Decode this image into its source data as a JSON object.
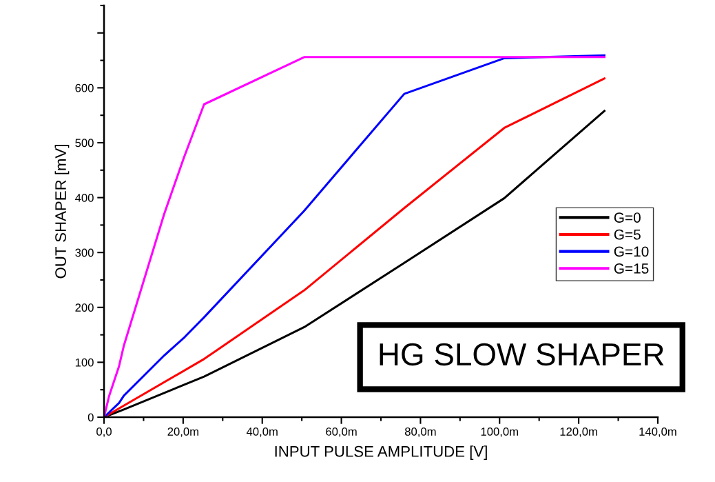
{
  "chart_data": {
    "type": "line",
    "xlabel": "INPUT PULSE AMPLITUDE [V]",
    "ylabel": "OUT SHAPER [mV]",
    "annotations": [
      "HG SLOW SHAPER"
    ],
    "xlim": [
      0,
      140
    ],
    "ylim": [
      0,
      750
    ],
    "xticks": [
      {
        "value": 0,
        "label": "0,0"
      },
      {
        "value": 20,
        "label": "20,0m"
      },
      {
        "value": 40,
        "label": "40,0m"
      },
      {
        "value": 60,
        "label": "60,0m"
      },
      {
        "value": 80,
        "label": "80,0m"
      },
      {
        "value": 100,
        "label": "100,0m"
      },
      {
        "value": 120,
        "label": "120,0m"
      },
      {
        "value": 140,
        "label": "140,0m"
      }
    ],
    "yticks": [
      0,
      100,
      200,
      300,
      400,
      500,
      600,
      {
        "value": 700,
        "label": null
      }
    ],
    "legend": "right",
    "grid": false,
    "marker": "none",
    "line_style": "solid",
    "series": [
      {
        "name": "G=0",
        "color": "#000000",
        "x": [
          0,
          5,
          25.3,
          50.6,
          75.9,
          101.2,
          126.5
        ],
        "values": [
          0,
          14,
          74,
          164,
          281,
          399,
          558
        ]
      },
      {
        "name": "G=5",
        "color": "#ff0000",
        "x": [
          0,
          5,
          25.3,
          50.6,
          75.9,
          101.2,
          126.5
        ],
        "values": [
          0,
          21,
          106,
          231,
          381,
          527,
          617
        ]
      },
      {
        "name": "G=10",
        "color": "#0000ff",
        "x": [
          0,
          3.8,
          5,
          15.3,
          20.4,
          25.3,
          50.6,
          75.9,
          101.2,
          126.5
        ],
        "values": [
          0,
          26,
          39,
          113,
          146,
          182,
          376,
          589,
          654,
          659
        ]
      },
      {
        "name": "G=15",
        "color": "#ff00ff",
        "x": [
          0,
          1.3,
          3.8,
          5,
          15.2,
          20.2,
          25.3,
          50.6,
          75.9,
          101.2,
          126.5
        ],
        "values": [
          0,
          39,
          93,
          130,
          370,
          473,
          570,
          656,
          656,
          656,
          656
        ]
      }
    ]
  }
}
